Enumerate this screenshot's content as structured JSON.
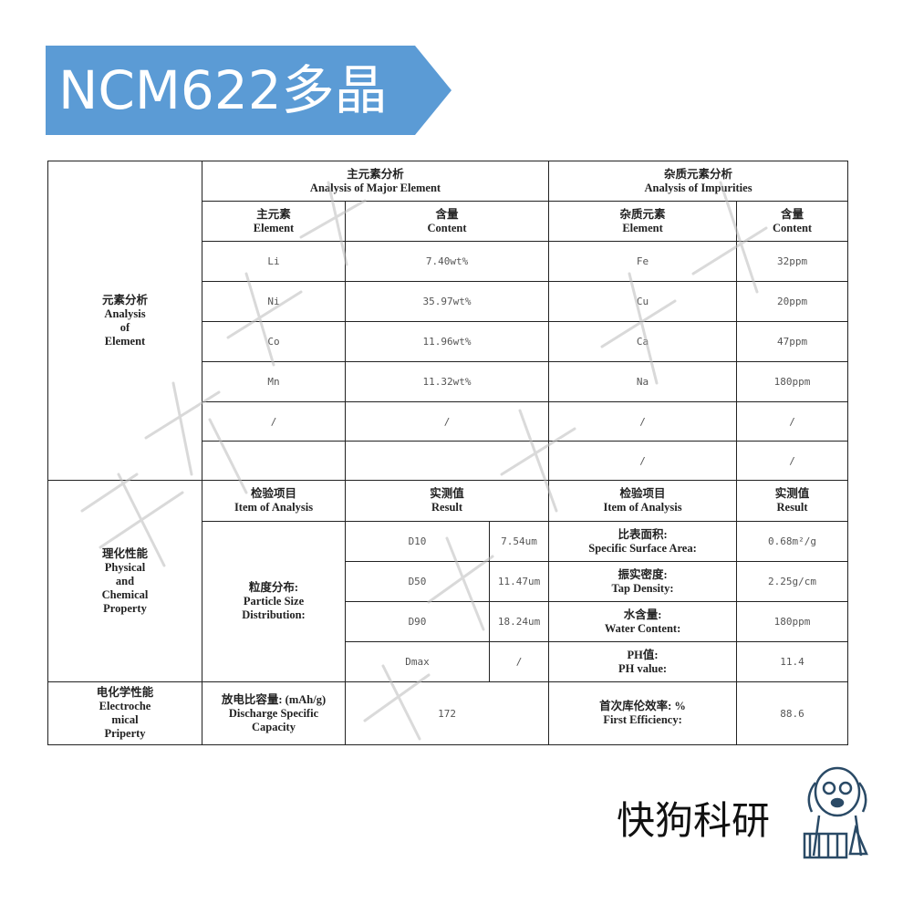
{
  "banner": {
    "title": "NCM622多晶",
    "color": "#5b9bd5"
  },
  "table": {
    "element_section": {
      "label": "元素分析\nAnalysis\nof\nElement",
      "major_header": "主元素分析\nAnalysis of Major Element",
      "impurity_header": "杂质元素分析\nAnalysis of Impurities",
      "col_element": "主元素\nElement",
      "col_content": "含量\nContent",
      "col_imp_element": "杂质元素\nElement",
      "col_imp_content": "含量\nContent",
      "rows": [
        {
          "el": "Li",
          "content": "7.40wt%",
          "imp": "Fe",
          "imp_content": "32ppm"
        },
        {
          "el": "Ni",
          "content": "35.97wt%",
          "imp": "Cu",
          "imp_content": "20ppm"
        },
        {
          "el": "Co",
          "content": "11.96wt%",
          "imp": "Ca",
          "imp_content": "47ppm"
        },
        {
          "el": "Mn",
          "content": "11.32wt%",
          "imp": "Na",
          "imp_content": "180ppm"
        },
        {
          "el": "/",
          "content": "/",
          "imp": "/",
          "imp_content": "/"
        },
        {
          "el": "",
          "content": "",
          "imp": "/",
          "imp_content": "/"
        }
      ]
    },
    "physical_section": {
      "label": "理化性能\nPhysical\nand\nChemical\nProperty",
      "col_item": "检验项目\nItem of Analysis",
      "col_result": "实测值\nResult",
      "col_item2": "检验项目\nItem of Analysis",
      "col_result2": "实测值\nResult",
      "psd_label": "粒度分布:\nParticle Size\nDistribution:",
      "rows": [
        {
          "d": "D10",
          "dv": "7.54um",
          "item": "比表面积:\nSpecific Surface Area:",
          "val": "0.68m²/g"
        },
        {
          "d": "D50",
          "dv": "11.47um",
          "item": "振实密度:\nTap Density:",
          "val": "2.25g/cm"
        },
        {
          "d": "D90",
          "dv": "18.24um",
          "item": "水含量:\nWater Content:",
          "val": "180ppm"
        },
        {
          "d": "Dmax",
          "dv": "/",
          "item": "PH值:\nPH value:",
          "val": "11.4"
        }
      ]
    },
    "electro_section": {
      "label": "电化学性能\nElectroche\nmical\nPriperty",
      "item": "放电比容量: (mAh/g)\nDischarge Specific\nCapacity",
      "val": "172",
      "item2": "首次库伦效率: %\nFirst Efficiency:",
      "val2": "88.6"
    }
  },
  "logo": {
    "text": "快狗科研",
    "watermark": "快狗科研"
  }
}
